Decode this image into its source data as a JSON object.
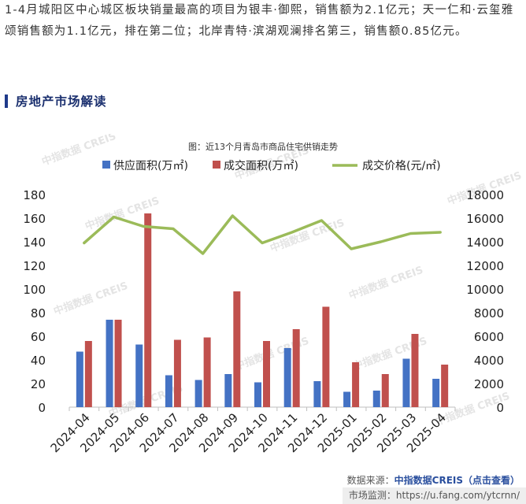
{
  "article": {
    "intro": "1-4月城阳区中心城区板块销量最高的项目为银丰·御熙，销售额为2.1亿元；天一仁和·云玺雅颂销售额为1.1亿元，排在第二位；北岸青特·滨湖观澜排名第三，销售额0.85亿元。",
    "section_title": "房地产市场解读"
  },
  "footer": {
    "source_prefix": "数据来源：",
    "source_brand": "中指数据CREIS（点击查看）",
    "monitor": "市场监测：https://u.fang.com/ytcrnn/"
  },
  "watermark": "中指数据 CREIS",
  "colors": {
    "supply": "#4472c4",
    "deal": "#c0504d",
    "price": "#9bbb59",
    "accent": "#1f3a8a"
  },
  "chart_data": {
    "type": "bar",
    "title": "图：近13个月青岛市商品住宅供销走势",
    "categories": [
      "2024-04",
      "2024-05",
      "2024-06",
      "2024-07",
      "2024-08",
      "2024-09",
      "2024-10",
      "2024-11",
      "2024-12",
      "2025-01",
      "2025-02",
      "2025-03",
      "2025-04"
    ],
    "series": [
      {
        "name": "供应面积(万㎡)",
        "type": "bar",
        "axis": "left",
        "values": [
          47,
          74,
          53,
          27,
          23,
          28,
          21,
          50,
          22,
          13,
          14,
          41,
          24
        ]
      },
      {
        "name": "成交面积(万㎡)",
        "type": "bar",
        "axis": "left",
        "values": [
          56,
          74,
          164,
          57,
          59,
          98,
          56,
          66,
          85,
          38,
          28,
          62,
          36
        ]
      },
      {
        "name": "成交价格(元/㎡)",
        "type": "line",
        "axis": "right",
        "values": [
          13900,
          16100,
          15300,
          15100,
          13000,
          16200,
          13900,
          14800,
          15800,
          13400,
          14000,
          14700,
          14800
        ]
      }
    ],
    "y_left": {
      "min": 0,
      "max": 180,
      "step": 20,
      "ticks": [
        "0",
        "20",
        "40",
        "60",
        "80",
        "100",
        "120",
        "140",
        "160",
        "180"
      ]
    },
    "y_right": {
      "min": 0,
      "max": 18000,
      "step": 2000,
      "ticks": [
        "0",
        "2000",
        "4000",
        "6000",
        "8000",
        "10000",
        "12000",
        "14000",
        "16000",
        "18000"
      ]
    },
    "legend_position": "top",
    "grid": false
  }
}
